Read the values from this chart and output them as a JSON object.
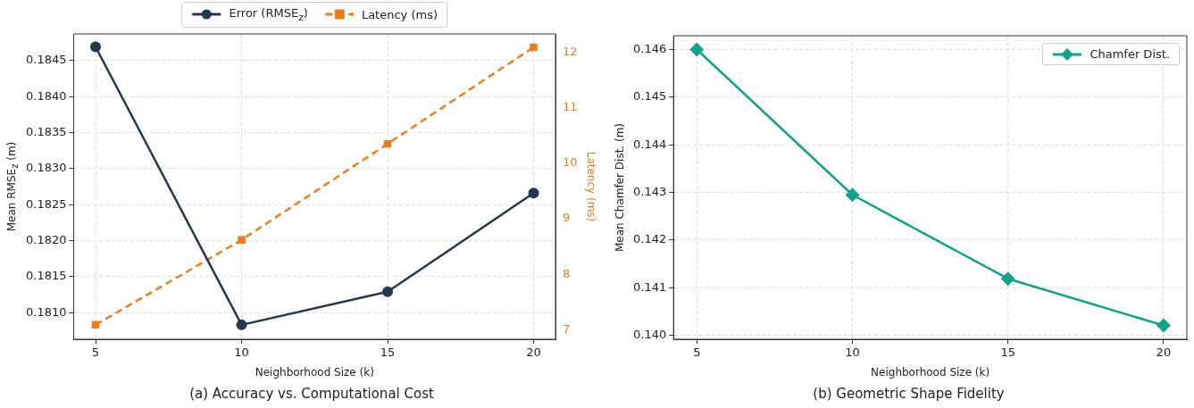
{
  "chart_data": [
    {
      "type": "line",
      "title": "(a) Accuracy vs. Computational Cost",
      "xlabel": "Neighborhood Size (k)",
      "ylabel": "Mean RMSE$_{z}$ (m)",
      "y2label": "Latency (ms)",
      "x": [
        5,
        10,
        15,
        20
      ],
      "xlim": [
        4.25,
        20.75
      ],
      "xticks": [
        5,
        10,
        15,
        20
      ],
      "ylim": [
        0.18063,
        0.18487
      ],
      "yticks": [
        {
          "value": 0.181,
          "label": "0.1810"
        },
        {
          "value": 0.1815,
          "label": "0.1815"
        },
        {
          "value": 0.182,
          "label": "0.1820"
        },
        {
          "value": 0.1825,
          "label": "0.1825"
        },
        {
          "value": 0.183,
          "label": "0.1830"
        },
        {
          "value": 0.1835,
          "label": "0.1835"
        },
        {
          "value": 0.184,
          "label": "0.1840"
        },
        {
          "value": 0.1845,
          "label": "0.1845"
        }
      ],
      "y2lim": [
        6.83,
        12.33
      ],
      "y2ticks": [
        7,
        8,
        9,
        10,
        11,
        12
      ],
      "grid": true,
      "legend": "top",
      "series": [
        {
          "name": "Error (RMSE$_{z}$)",
          "color": "#253650",
          "values": [
            0.18469,
            0.18083,
            0.18129,
            0.18266
          ],
          "marker": "circle",
          "line_style": "solid"
        },
        {
          "name": "Latency (ms)",
          "color": "#e67e22",
          "values": [
            7.09,
            8.62,
            10.35,
            12.09
          ],
          "axis": "y2",
          "marker": "square",
          "line_style": "dashed"
        }
      ]
    },
    {
      "type": "line",
      "title": "(b) Geometric Shape Fidelity",
      "xlabel": "Neighborhood Size (k)",
      "ylabel": "Mean Chamfer Dist. (m)",
      "x": [
        5,
        10,
        15,
        20
      ],
      "xlim": [
        4.25,
        20.75
      ],
      "xticks": [
        5,
        10,
        15,
        20
      ],
      "ylim": [
        0.13992,
        0.14629
      ],
      "yticks": [
        {
          "value": 0.14,
          "label": "0.140"
        },
        0.141,
        0.142,
        0.143,
        0.144,
        0.145,
        0.146
      ],
      "grid": true,
      "legend": "top right",
      "series": [
        {
          "name": "Chamfer Dist.",
          "color": "#16a085",
          "values": [
            0.146,
            0.14295,
            0.14119,
            0.14021
          ],
          "marker": "diamond",
          "line_style": "solid"
        }
      ]
    }
  ]
}
